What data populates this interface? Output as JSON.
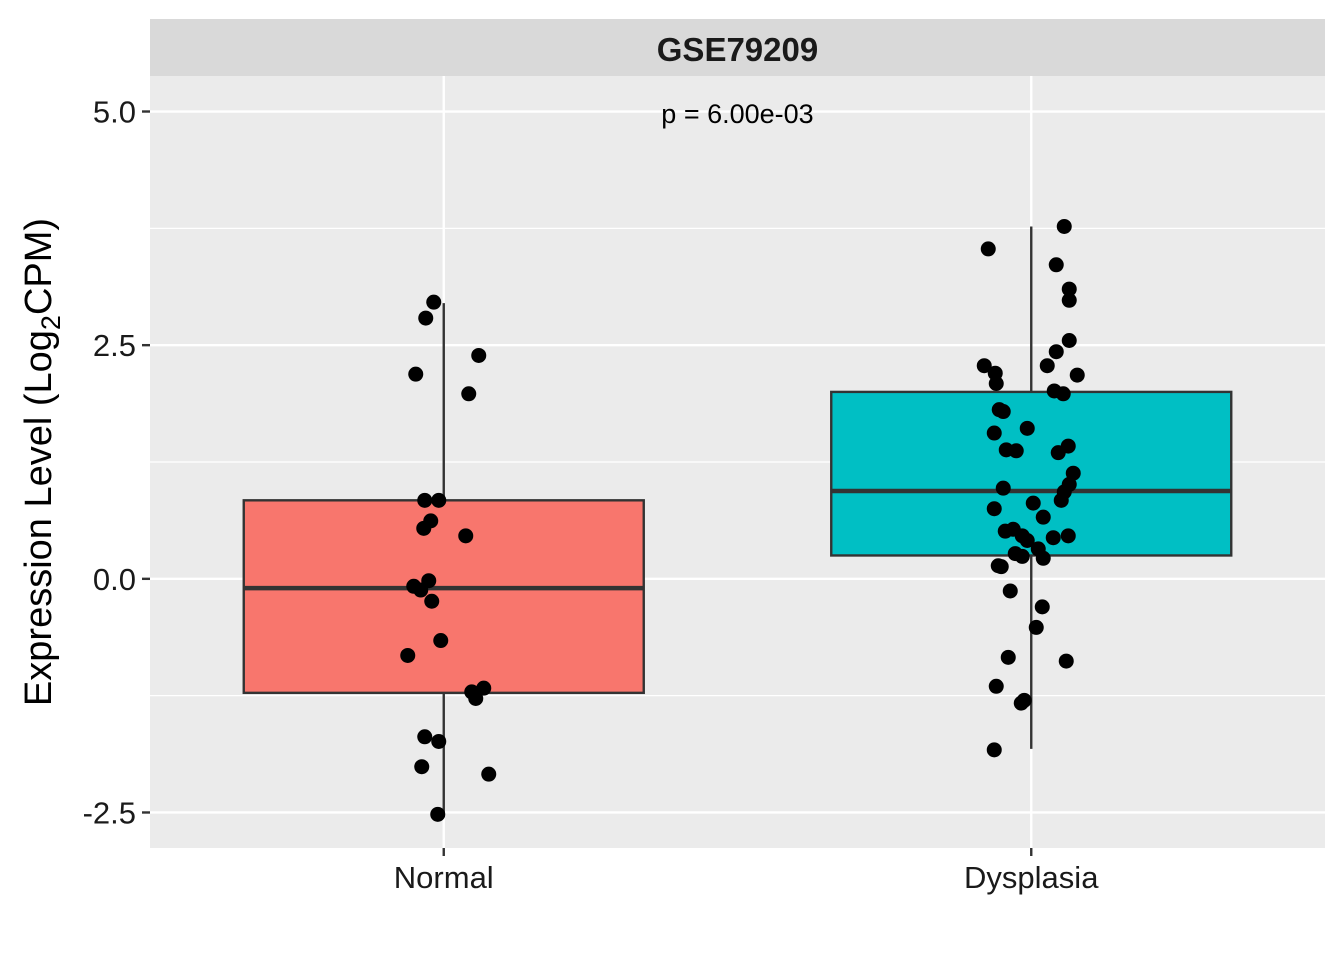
{
  "chart_data": {
    "type": "box",
    "panel_title": "GSE79209",
    "annotation": "p = 6.00e-03",
    "ylabel": {
      "prefix": "Expression Level (Log",
      "subscript": "2",
      "suffix": "CPM)"
    },
    "xlabel": "",
    "ylim": [
      -2.88,
      5.38
    ],
    "yticks": [
      -2.5,
      0.0,
      2.5,
      5.0
    ],
    "ytick_labels": [
      "-2.5",
      "0.0",
      "2.5",
      "5.0"
    ],
    "grid": true,
    "legend": "none",
    "categories": [
      "Normal",
      "Dysplasia"
    ],
    "colors": {
      "Normal": "#F8766D",
      "Dysplasia": "#00BFC4",
      "points": "#000000",
      "panel": "#EBEBEB",
      "strip": "#D9D9D9"
    },
    "boxes": [
      {
        "name": "Normal",
        "whisker_low": -2.55,
        "q1": -1.22,
        "median": -0.1,
        "q3": 0.84,
        "whisker_high": 2.95
      },
      {
        "name": "Dysplasia",
        "whisker_low": -1.82,
        "q1": 0.25,
        "median": 0.94,
        "q3": 2.0,
        "whisker_high": 3.77
      }
    ],
    "points": {
      "Normal": [
        [
          -0.1,
          2.96
        ],
        [
          -0.18,
          2.79
        ],
        [
          0.35,
          2.39
        ],
        [
          -0.28,
          2.19
        ],
        [
          0.25,
          1.98
        ],
        [
          -0.19,
          0.84
        ],
        [
          -0.05,
          0.84
        ],
        [
          -0.13,
          0.62
        ],
        [
          -0.2,
          0.54
        ],
        [
          0.22,
          0.46
        ],
        [
          -0.15,
          -0.02
        ],
        [
          -0.3,
          -0.08
        ],
        [
          -0.23,
          -0.12
        ],
        [
          -0.12,
          -0.24
        ],
        [
          -0.03,
          -0.66
        ],
        [
          -0.36,
          -0.82
        ],
        [
          0.4,
          -1.17
        ],
        [
          0.28,
          -1.21
        ],
        [
          0.32,
          -1.28
        ],
        [
          -0.19,
          -1.69
        ],
        [
          -0.05,
          -1.74
        ],
        [
          -0.22,
          -2.01
        ],
        [
          0.45,
          -2.09
        ],
        [
          -0.06,
          -2.52
        ]
      ],
      "Dysplasia": [
        [
          0.33,
          3.77
        ],
        [
          -0.43,
          3.53
        ],
        [
          0.25,
          3.36
        ],
        [
          0.38,
          3.1
        ],
        [
          0.38,
          2.98
        ],
        [
          0.38,
          2.55
        ],
        [
          0.25,
          2.43
        ],
        [
          -0.47,
          2.28
        ],
        [
          -0.36,
          2.2
        ],
        [
          0.46,
          2.18
        ],
        [
          -0.35,
          2.09
        ],
        [
          0.16,
          2.28
        ],
        [
          0.23,
          2.01
        ],
        [
          0.32,
          1.98
        ],
        [
          -0.32,
          1.81
        ],
        [
          -0.28,
          1.79
        ],
        [
          -0.37,
          1.56
        ],
        [
          -0.04,
          1.61
        ],
        [
          0.37,
          1.42
        ],
        [
          -0.25,
          1.38
        ],
        [
          -0.15,
          1.37
        ],
        [
          0.27,
          1.35
        ],
        [
          0.42,
          1.13
        ],
        [
          0.38,
          1.01
        ],
        [
          0.33,
          0.93
        ],
        [
          -0.28,
          0.97
        ],
        [
          0.3,
          0.84
        ],
        [
          0.02,
          0.81
        ],
        [
          -0.37,
          0.75
        ],
        [
          0.12,
          0.66
        ],
        [
          -0.18,
          0.53
        ],
        [
          -0.26,
          0.51
        ],
        [
          -0.09,
          0.46
        ],
        [
          0.37,
          0.46
        ],
        [
          0.22,
          0.44
        ],
        [
          -0.04,
          0.41
        ],
        [
          0.07,
          0.32
        ],
        [
          -0.16,
          0.27
        ],
        [
          -0.09,
          0.24
        ],
        [
          0.12,
          0.22
        ],
        [
          -0.33,
          0.14
        ],
        [
          -0.3,
          0.13
        ],
        [
          -0.21,
          -0.13
        ],
        [
          0.11,
          -0.3
        ],
        [
          0.05,
          -0.52
        ],
        [
          -0.23,
          -0.84
        ],
        [
          0.35,
          -0.88
        ],
        [
          -0.35,
          -1.15
        ],
        [
          -0.07,
          -1.3
        ],
        [
          -0.1,
          -1.33
        ],
        [
          -0.37,
          -1.83
        ]
      ]
    }
  }
}
